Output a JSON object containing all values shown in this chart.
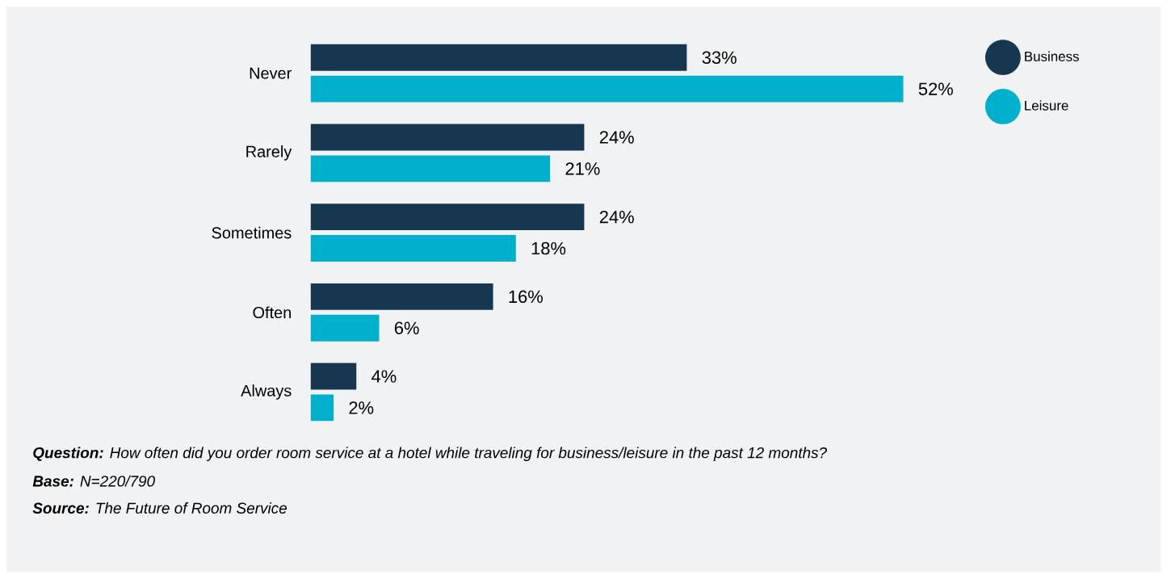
{
  "chart_data": {
    "type": "bar",
    "orientation": "horizontal",
    "categories": [
      "Never",
      "Rarely",
      "Sometimes",
      "Often",
      "Always"
    ],
    "series": [
      {
        "name": "Business",
        "color": "#16374f",
        "values": [
          33,
          24,
          24,
          16,
          4
        ],
        "value_labels": [
          "33%",
          "24%",
          "24%",
          "16%",
          "4%"
        ]
      },
      {
        "name": "Leisure",
        "color": "#00b0cc",
        "values": [
          52,
          21,
          18,
          6,
          2
        ],
        "value_labels": [
          "52%",
          "21%",
          "18%",
          "6%",
          "2%"
        ]
      }
    ],
    "legend": "top right",
    "tick_labels": "y",
    "annotations": [
      "**Question:** How often did you order room service at a hotel while traveling for business/leisure in the past 12 months?",
      "**Base:** N=220/790",
      "**Source:** The Future of Room Service"
    ]
  }
}
